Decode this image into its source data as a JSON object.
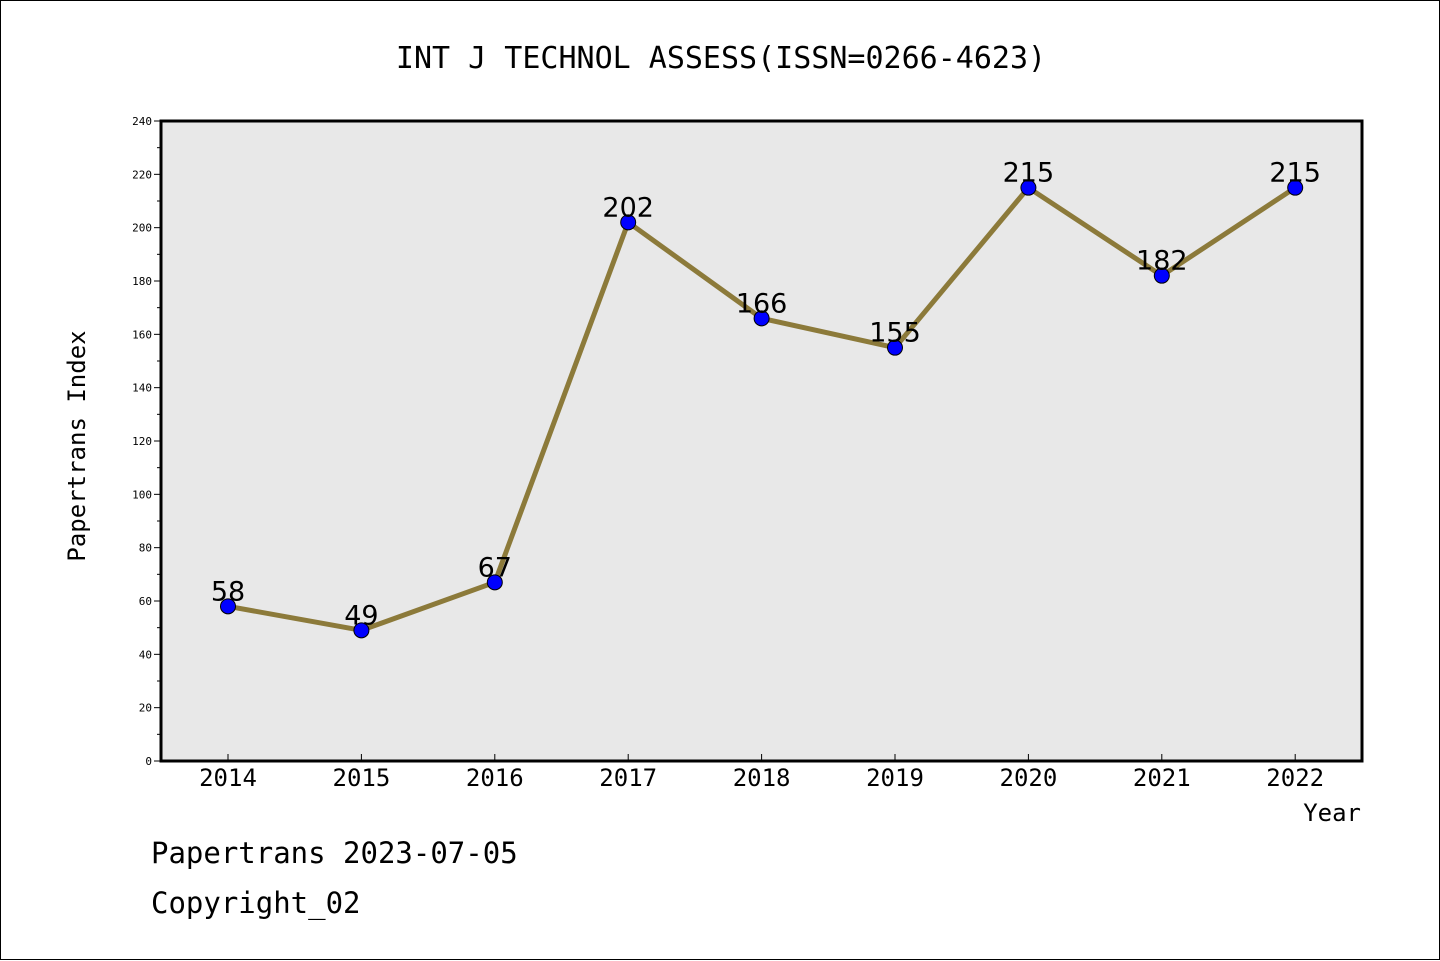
{
  "chart_data": {
    "type": "line",
    "title": "INT J TECHNOL ASSESS(ISSN=0266-4623)",
    "xlabel": "Year",
    "ylabel": "Papertrans Index",
    "categories": [
      "2014",
      "2015",
      "2016",
      "2017",
      "2018",
      "2019",
      "2020",
      "2021",
      "2022"
    ],
    "series": [
      {
        "values": [
          58,
          49,
          67,
          202,
          166,
          155,
          215,
          182,
          215
        ]
      }
    ],
    "ylim": [
      0,
      240
    ],
    "y_ticks": [
      0,
      20,
      40,
      60,
      80,
      100,
      120,
      140,
      160,
      180,
      200,
      220,
      240
    ],
    "grid": false,
    "data_labels": true,
    "colors": {
      "line": "#8c7a3a",
      "marker": "#0000ff",
      "plot_background": "#e8e8e8"
    }
  },
  "footer": {
    "date_line": "Papertrans 2023-07-05",
    "copyright_line": "Copyright_02"
  }
}
